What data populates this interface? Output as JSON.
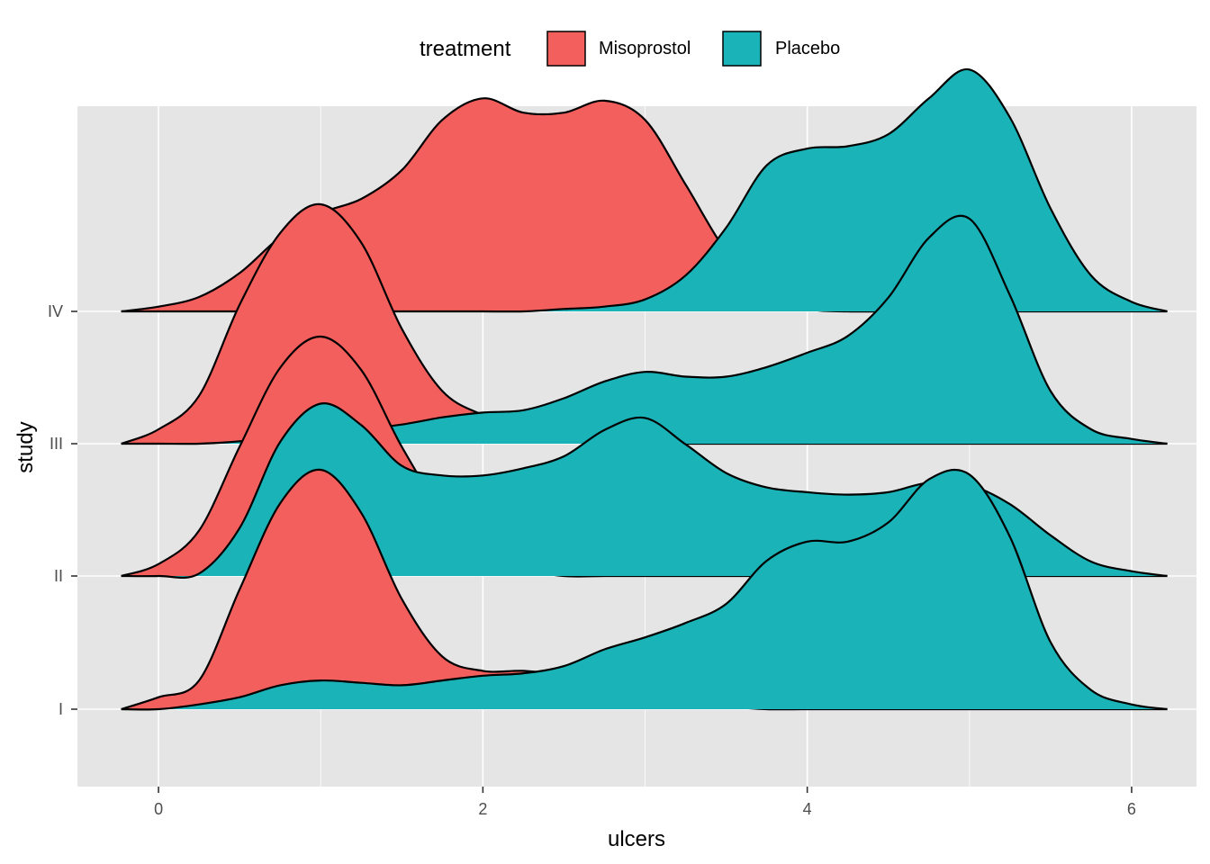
{
  "chart_data": {
    "type": "area",
    "subtype": "ridgeline-density",
    "title": "",
    "xlabel": "ulcers",
    "ylabel": "study",
    "xlim": [
      -0.5,
      6.4
    ],
    "x_ticks": [
      "0",
      "2",
      "4",
      "6"
    ],
    "categories": [
      "I",
      "II",
      "III",
      "IV"
    ],
    "legend": {
      "title": "treatment",
      "position": "top",
      "entries": [
        {
          "label": "Misoprostol",
          "color": "#F25F5C"
        },
        {
          "label": "Placebo",
          "color": "#1AB3B8"
        }
      ]
    },
    "panel_background": "#E5E5E5",
    "grid": true,
    "outline_color": "#000000",
    "x": [
      -0.23,
      0.0,
      0.25,
      0.5,
      0.75,
      1.0,
      1.25,
      1.5,
      1.75,
      2.0,
      2.25,
      2.5,
      2.75,
      3.0,
      3.25,
      3.5,
      3.75,
      4.0,
      4.25,
      4.5,
      4.75,
      5.0,
      5.25,
      5.5,
      5.75,
      6.0,
      6.22
    ],
    "series": [
      {
        "name": "Misoprostol",
        "study": "I",
        "color": "#F25F5C",
        "values": [
          0.0,
          0.05,
          0.12,
          0.5,
          0.86,
          1.0,
          0.82,
          0.46,
          0.22,
          0.16,
          0.16,
          0.14,
          0.1,
          0.05,
          0.02,
          0.01,
          0.0,
          0.0,
          0.0,
          0.0,
          0.0,
          0.0,
          0.0,
          0.0,
          0.0,
          0.0,
          0.0
        ]
      },
      {
        "name": "Placebo",
        "study": "I",
        "color": "#1AB3B8",
        "values": [
          0.0,
          0.0,
          0.02,
          0.05,
          0.1,
          0.12,
          0.11,
          0.1,
          0.12,
          0.14,
          0.15,
          0.18,
          0.25,
          0.3,
          0.36,
          0.44,
          0.62,
          0.7,
          0.7,
          0.78,
          0.96,
          0.98,
          0.72,
          0.28,
          0.08,
          0.02,
          0.0
        ]
      },
      {
        "name": "Misoprostol",
        "study": "II",
        "color": "#F25F5C",
        "values": [
          0.0,
          0.05,
          0.19,
          0.54,
          0.87,
          1.0,
          0.86,
          0.54,
          0.27,
          0.11,
          0.03,
          0.0,
          0.0,
          0.0,
          0.0,
          0.0,
          0.0,
          0.0,
          0.0,
          0.0,
          0.0,
          0.0,
          0.0,
          0.0,
          0.0,
          0.0,
          0.0
        ]
      },
      {
        "name": "Placebo",
        "study": "II",
        "color": "#1AB3B8",
        "values": [
          0.0,
          0.0,
          0.01,
          0.2,
          0.56,
          0.72,
          0.63,
          0.46,
          0.42,
          0.42,
          0.45,
          0.5,
          0.61,
          0.66,
          0.55,
          0.43,
          0.37,
          0.35,
          0.34,
          0.35,
          0.39,
          0.38,
          0.3,
          0.17,
          0.06,
          0.02,
          0.0
        ]
      },
      {
        "name": "Misoprostol",
        "study": "III",
        "color": "#F25F5C",
        "values": [
          0.0,
          0.06,
          0.2,
          0.58,
          0.88,
          1.0,
          0.84,
          0.48,
          0.22,
          0.12,
          0.07,
          0.04,
          0.02,
          0.0,
          0.0,
          0.0,
          0.0,
          0.0,
          0.0,
          0.0,
          0.0,
          0.0,
          0.0,
          0.0,
          0.0,
          0.0,
          0.0
        ]
      },
      {
        "name": "Placebo",
        "study": "III",
        "color": "#1AB3B8",
        "values": [
          0.0,
          0.0,
          0.0,
          0.01,
          0.03,
          0.05,
          0.06,
          0.08,
          0.11,
          0.13,
          0.14,
          0.19,
          0.26,
          0.3,
          0.28,
          0.28,
          0.32,
          0.38,
          0.45,
          0.61,
          0.86,
          0.94,
          0.62,
          0.22,
          0.06,
          0.02,
          0.0
        ]
      },
      {
        "name": "Misoprostol",
        "study": "IV",
        "color": "#F25F5C",
        "values": [
          0.0,
          0.02,
          0.06,
          0.16,
          0.31,
          0.41,
          0.47,
          0.59,
          0.8,
          0.89,
          0.83,
          0.83,
          0.88,
          0.8,
          0.53,
          0.25,
          0.07,
          0.01,
          0.0,
          0.0,
          0.0,
          0.0,
          0.0,
          0.0,
          0.0,
          0.0,
          0.0
        ]
      },
      {
        "name": "Placebo",
        "study": "IV",
        "color": "#1AB3B8",
        "values": [
          0.0,
          0.0,
          0.0,
          0.0,
          0.0,
          0.0,
          0.0,
          0.0,
          0.0,
          0.0,
          0.0,
          0.01,
          0.02,
          0.05,
          0.15,
          0.35,
          0.61,
          0.68,
          0.69,
          0.74,
          0.89,
          1.01,
          0.81,
          0.43,
          0.15,
          0.04,
          0.0
        ]
      }
    ]
  }
}
